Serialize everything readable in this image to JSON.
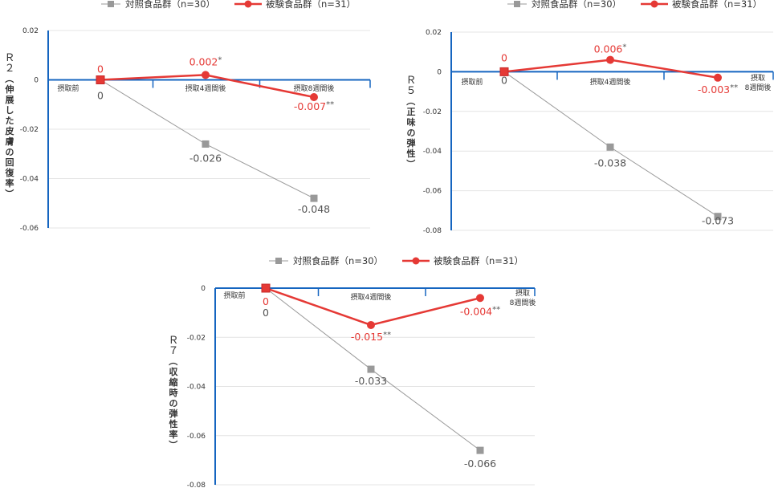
{
  "colors": {
    "control": "#999999",
    "test": "#e53935",
    "axis": "#1565c0"
  },
  "chart_data": [
    {
      "type": "line",
      "ylabel": "Ｒ２（伸展した皮膚の回復率）",
      "categories": [
        "摂取前",
        "摂取4週間後",
        "摂取8週間後"
      ],
      "yticks": [
        "0.02",
        "0",
        "-0.02",
        "-0.04",
        "-0.06"
      ],
      "ylim": [
        -0.06,
        0.02
      ],
      "legend": [
        "対照食品群（n=30）",
        "被験食品群（n=31）"
      ],
      "series": [
        {
          "name": "対照食品群（n=30）",
          "values": [
            0,
            -0.026,
            -0.048
          ],
          "labels": [
            "0",
            "-0.026",
            "-0.048"
          ],
          "marks": [
            "",
            "",
            ""
          ]
        },
        {
          "name": "被験食品群（n=31）",
          "values": [
            0,
            0.002,
            -0.007
          ],
          "labels": [
            "0",
            "0.002",
            "-0.007"
          ],
          "marks": [
            "",
            "*",
            "**"
          ]
        }
      ]
    },
    {
      "type": "line",
      "ylabel": "Ｒ５（正味の弾性）",
      "categories": [
        "摂取前",
        "摂取4週間後",
        "摂取 8週間後"
      ],
      "yticks": [
        "0.02",
        "0",
        "-0.02",
        "-0.04",
        "-0.06",
        "-0.08"
      ],
      "ylim": [
        -0.08,
        0.02
      ],
      "legend": [
        "対照食品群（n=30）",
        "被験食品群（n=31）"
      ],
      "series": [
        {
          "name": "対照食品群（n=30）",
          "values": [
            0,
            -0.038,
            -0.073
          ],
          "labels": [
            "0",
            "-0.038",
            "-0.073"
          ],
          "marks": [
            "",
            "",
            ""
          ]
        },
        {
          "name": "被験食品群（n=31）",
          "values": [
            0,
            0.006,
            -0.003
          ],
          "labels": [
            "0",
            "0.006",
            "-0.003"
          ],
          "marks": [
            "",
            "*",
            "**"
          ]
        }
      ]
    },
    {
      "type": "line",
      "ylabel": "Ｒ７（収縮時の弾性率）",
      "categories": [
        "摂取前",
        "摂取4週間後",
        "摂取 8週間後"
      ],
      "yticks": [
        "0",
        "-0.02",
        "-0.04",
        "-0.06",
        "-0.08"
      ],
      "ylim": [
        -0.08,
        0
      ],
      "legend": [
        "対照食品群（n=30）",
        "被験食品群（n=31）"
      ],
      "series": [
        {
          "name": "対照食品群（n=30）",
          "values": [
            0,
            -0.033,
            -0.066
          ],
          "labels": [
            "0",
            "-0.033",
            "-0.066"
          ],
          "marks": [
            "",
            "",
            ""
          ]
        },
        {
          "name": "被験食品群（n=31）",
          "values": [
            0,
            -0.015,
            -0.004
          ],
          "labels": [
            "0",
            "-0.015",
            "-0.004"
          ],
          "marks": [
            "",
            "**",
            "**"
          ]
        }
      ]
    }
  ]
}
